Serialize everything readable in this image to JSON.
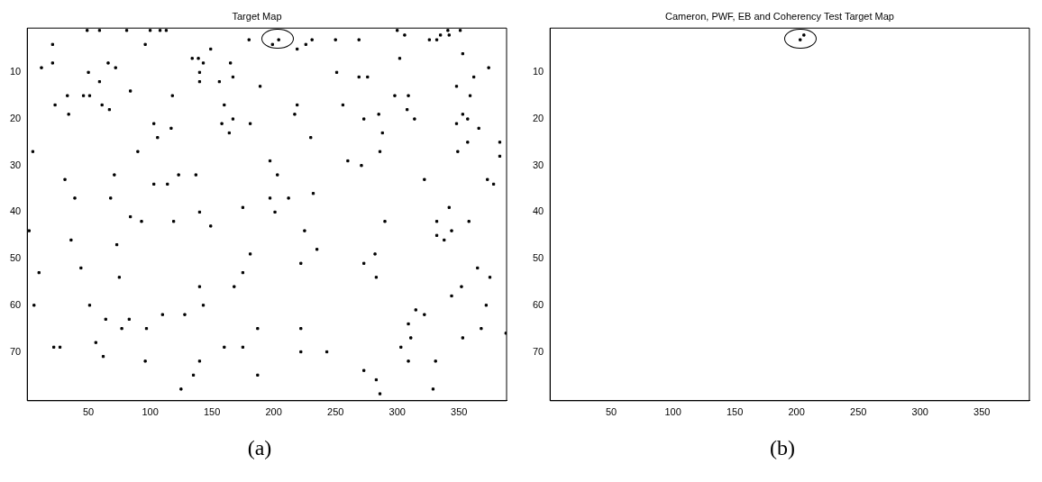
{
  "chart_data": [
    {
      "type": "scatter",
      "title": "Target Map",
      "annotations": [
        "(a)"
      ],
      "xlim": [
        0.5,
        388.5
      ],
      "ylim": [
        80.5,
        0.5
      ],
      "xticks": [
        50,
        100,
        150,
        200,
        250,
        300,
        350
      ],
      "yticks": [
        10,
        20,
        30,
        40,
        50,
        60,
        70
      ],
      "grid": false,
      "legend": false,
      "marker": "square",
      "color": "#000000",
      "x": [
        21,
        12,
        21,
        5,
        23,
        33,
        34,
        46,
        51,
        50,
        59,
        61,
        66,
        72,
        67,
        84,
        96,
        103,
        106,
        117,
        118,
        134,
        90,
        31,
        71,
        103,
        114,
        123,
        39,
        68,
        49,
        59,
        81,
        100,
        108,
        113,
        180,
        199,
        204,
        219,
        226,
        231,
        250,
        269,
        149,
        139,
        143,
        165,
        140,
        140,
        156,
        167,
        189,
        251,
        269,
        160,
        167,
        158,
        181,
        164,
        219,
        217,
        256,
        273,
        230,
        197,
        203,
        260,
        271,
        137,
        197,
        212,
        232,
        140,
        175,
        201,
        84,
        93,
        119,
        2,
        36,
        73,
        44,
        10,
        75,
        51,
        6,
        64,
        83,
        110,
        128,
        77,
        97,
        56,
        22,
        27,
        62,
        96,
        125,
        135,
        149,
        225,
        235,
        181,
        222,
        273,
        175,
        140,
        168,
        143,
        187,
        222,
        160,
        175,
        222,
        243,
        273,
        140,
        187,
        306,
        300,
        326,
        332,
        335,
        342,
        341,
        351,
        302,
        353,
        374,
        276,
        362,
        348,
        298,
        309,
        359,
        285,
        308,
        314,
        353,
        357,
        348,
        366,
        288,
        286,
        357,
        383,
        349,
        383,
        322,
        373,
        378,
        342,
        290,
        332,
        358,
        344,
        332,
        338,
        282,
        283,
        365,
        375,
        352,
        344,
        372,
        315,
        322,
        309,
        368,
        388,
        311,
        353,
        303,
        309,
        331,
        283,
        329,
        286
      ],
      "values": [
        4,
        9,
        8,
        27,
        17,
        15,
        19,
        15,
        15,
        10,
        12,
        17,
        8,
        9,
        18,
        14,
        4,
        21,
        24,
        22,
        15,
        7,
        27,
        33,
        32,
        34,
        34,
        32,
        37,
        37,
        1,
        1,
        1,
        1,
        1,
        1,
        3,
        4,
        3,
        5,
        4,
        3,
        3,
        3,
        5,
        7,
        8,
        8,
        10,
        12,
        12,
        11,
        13,
        10,
        11,
        17,
        20,
        21,
        21,
        23,
        17,
        19,
        17,
        20,
        24,
        29,
        32,
        29,
        30,
        32,
        37,
        37,
        36,
        40,
        39,
        40,
        41,
        42,
        42,
        44,
        46,
        47,
        52,
        53,
        54,
        60,
        60,
        63,
        63,
        62,
        62,
        65,
        65,
        68,
        69,
        69,
        71,
        72,
        78,
        75,
        43,
        44,
        48,
        49,
        51,
        51,
        53,
        56,
        56,
        60,
        65,
        65,
        69,
        69,
        70,
        70,
        74,
        72,
        75,
        2,
        1,
        3,
        3,
        2,
        2,
        1,
        1,
        7,
        6,
        9,
        11,
        11,
        13,
        15,
        15,
        15,
        19,
        18,
        20,
        19,
        20,
        21,
        22,
        23,
        27,
        25,
        25,
        27,
        28,
        33,
        33,
        34,
        39,
        42,
        42,
        42,
        44,
        45,
        46,
        49,
        54,
        52,
        54,
        56,
        58,
        60,
        61,
        62,
        64,
        65,
        66,
        67,
        67,
        69,
        72,
        72,
        76,
        78,
        79
      ]
    },
    {
      "type": "scatter",
      "title": "Cameron, PWF, EB and Coherency Test Target Map",
      "annotations": [
        "(b)"
      ],
      "xlim": [
        0.5,
        388.5
      ],
      "ylim": [
        80.5,
        0.5
      ],
      "xticks": [
        50,
        100,
        150,
        200,
        250,
        300,
        350
      ],
      "yticks": [
        10,
        20,
        30,
        40,
        50,
        60,
        70
      ],
      "grid": false,
      "legend": false,
      "marker": "square",
      "color": "#000000",
      "x": [
        203,
        206
      ],
      "values": [
        3,
        2
      ]
    }
  ]
}
